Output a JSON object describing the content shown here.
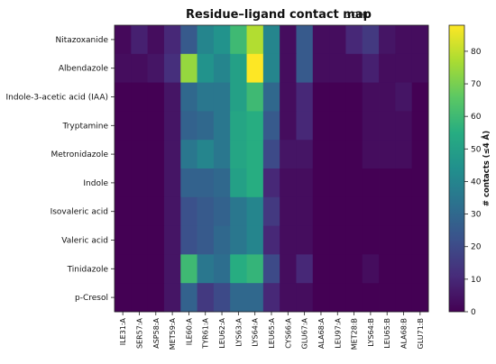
{
  "chart_data": {
    "type": "heatmap",
    "title": "Residue–ligand contact map",
    "subtitle": "3OHI",
    "rows": [
      "Nitazoxanide",
      "Albendazole",
      "Indole-3-acetic acid (IAA)",
      "Tryptamine",
      "Metronidazole",
      "Indole",
      "Isovaleric acid",
      "Valeric acid",
      "Tinidazole",
      "p-Cresol"
    ],
    "columns": [
      "ILE31:A",
      "SER57:A",
      "ASP58:A",
      "MET59:A",
      "ILE60:A",
      "TYR61:A",
      "LEU62:A",
      "LYS63:A",
      "LYS64:A",
      "LEU65:A",
      "CYS66:A",
      "GLU67:A",
      "ALA68:A",
      "LEU97:A",
      "MET28:B",
      "LYS64:B",
      "LEU65:B",
      "ALA68:B",
      "GLU71:B"
    ],
    "values": [
      [
        2,
        8,
        3,
        10,
        25,
        40,
        45,
        60,
        78,
        40,
        3,
        25,
        3,
        3,
        10,
        15,
        5,
        3,
        3
      ],
      [
        3,
        3,
        5,
        12,
        74,
        45,
        40,
        50,
        88,
        40,
        3,
        25,
        3,
        3,
        3,
        8,
        3,
        3,
        3
      ],
      [
        0,
        0,
        0,
        5,
        30,
        35,
        35,
        50,
        60,
        30,
        3,
        10,
        0,
        0,
        0,
        3,
        3,
        5,
        0
      ],
      [
        0,
        0,
        0,
        5,
        28,
        30,
        35,
        52,
        55,
        25,
        3,
        10,
        0,
        0,
        0,
        3,
        3,
        3,
        0
      ],
      [
        0,
        0,
        0,
        5,
        35,
        40,
        35,
        52,
        55,
        20,
        5,
        5,
        0,
        0,
        0,
        3,
        3,
        3,
        0
      ],
      [
        0,
        0,
        0,
        5,
        28,
        28,
        30,
        50,
        55,
        10,
        3,
        3,
        0,
        0,
        0,
        0,
        0,
        0,
        0
      ],
      [
        0,
        0,
        0,
        5,
        22,
        25,
        28,
        35,
        40,
        15,
        3,
        3,
        0,
        0,
        0,
        0,
        0,
        0,
        0
      ],
      [
        0,
        0,
        0,
        5,
        22,
        25,
        30,
        35,
        40,
        10,
        3,
        3,
        0,
        0,
        0,
        0,
        0,
        0,
        0
      ],
      [
        0,
        0,
        0,
        5,
        60,
        35,
        32,
        55,
        58,
        20,
        3,
        10,
        0,
        0,
        0,
        3,
        0,
        0,
        0
      ],
      [
        0,
        0,
        0,
        5,
        28,
        15,
        20,
        30,
        30,
        10,
        3,
        3,
        0,
        0,
        0,
        0,
        0,
        0,
        0
      ]
    ],
    "colorscale": "viridis",
    "vmin": 0,
    "vmax": 88,
    "colorbar": {
      "label": "# contacts (≤4 Å)",
      "ticks": [
        0,
        10,
        20,
        30,
        40,
        50,
        60,
        70,
        80
      ]
    },
    "grid": false
  }
}
